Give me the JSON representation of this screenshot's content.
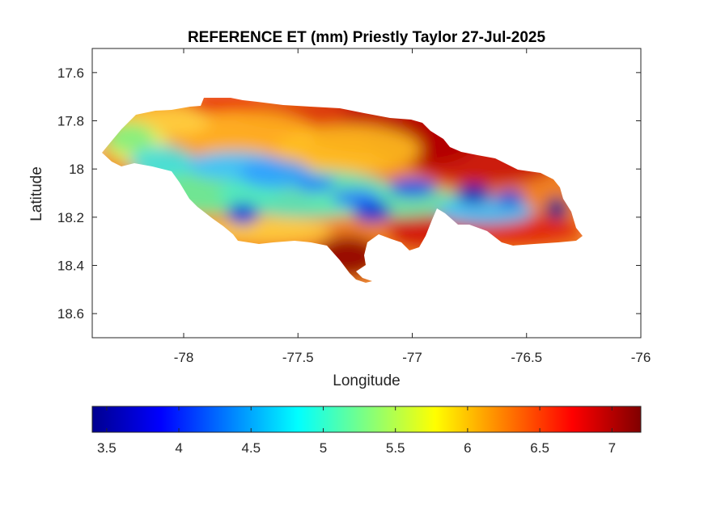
{
  "title": "REFERENCE ET (mm) Priestly Taylor 27-Jul-2025",
  "xlabel": "Longitude",
  "ylabel": "Latitude",
  "x_ticks": [
    "-78",
    "-77.5",
    "-77",
    "-76.5",
    "-76"
  ],
  "y_ticks": [
    "18.6",
    "18.4",
    "18.2",
    "18",
    "17.8",
    "17.6"
  ],
  "colorbar_ticks": [
    "3.5",
    "4",
    "4.5",
    "5",
    "5.5",
    "6",
    "6.5",
    "7"
  ],
  "chart_data": {
    "type": "heatmap",
    "title": "REFERENCE ET (mm) Priestly Taylor 27-Jul-2025",
    "xlabel": "Longitude",
    "ylabel": "Latitude",
    "xlim": [
      -78.4,
      -76
    ],
    "ylim": [
      17.5,
      18.7
    ],
    "x_tick_values": [
      -78,
      -77.5,
      -77,
      -76.5,
      -76
    ],
    "y_tick_values": [
      17.6,
      17.8,
      18,
      18.2,
      18.4,
      18.6
    ],
    "colormap": "jet",
    "clim": [
      3.4,
      7.2
    ],
    "colorbar_tick_values": [
      3.5,
      4,
      4.5,
      5,
      5.5,
      6,
      6.5,
      7
    ],
    "colorbar_location": "southoutside",
    "grid": false
  }
}
